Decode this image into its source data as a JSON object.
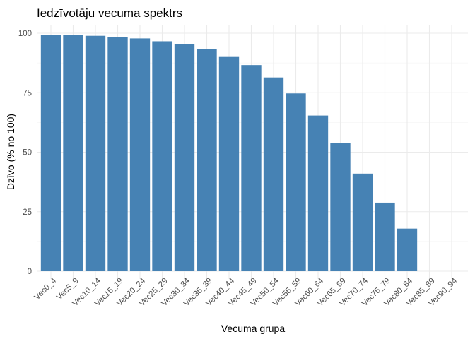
{
  "chart_data": {
    "type": "bar",
    "title": "Iedzīvotāju vecuma spektrs",
    "xlabel": "Vecuma grupa",
    "ylabel": "Dzīvo (% no 100)",
    "categories": [
      "Vec0_4",
      "Vec5_9",
      "Vec10_14",
      "Vec15_19",
      "Vec20_24",
      "Vec25_29",
      "Vec30_34",
      "Vec35_39",
      "Vec40_44",
      "Vec45_49",
      "Vec50_54",
      "Vec55_59",
      "Vec60_64",
      "Vec65_69",
      "Vec70_74",
      "Vec75_79",
      "Vec80_84",
      "Vec85_89",
      "Vec90_94"
    ],
    "values": [
      99.3,
      99.2,
      98.9,
      98.4,
      97.8,
      96.6,
      95.3,
      93.2,
      90.3,
      86.6,
      81.4,
      74.7,
      65.4,
      54.0,
      41.0,
      28.8,
      17.9,
      0,
      0
    ],
    "ylim": [
      0,
      100
    ],
    "yticks": [
      0,
      25,
      50,
      75,
      100
    ],
    "bar_color": "#4682B4",
    "grid": true,
    "legend": "none"
  }
}
